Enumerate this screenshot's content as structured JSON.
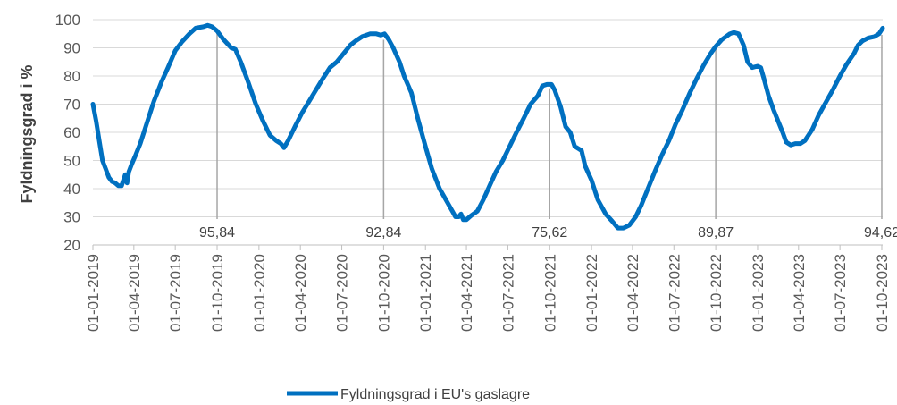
{
  "chart_data": {
    "type": "line",
    "ylabel": "Fyldningsgrad i %",
    "ylim": [
      20,
      100
    ],
    "yticks": [
      20,
      30,
      40,
      50,
      60,
      70,
      80,
      90,
      100
    ],
    "xlim": [
      "01-01-2019",
      "03-10-2023"
    ],
    "xticks": [
      "01-01-2019",
      "01-04-2019",
      "01-07-2019",
      "01-10-2019",
      "01-01-2020",
      "01-04-2020",
      "01-07-2020",
      "01-10-2020",
      "01-01-2021",
      "01-04-2021",
      "01-07-2021",
      "01-10-2021",
      "01-01-2022",
      "01-04-2022",
      "01-07-2022",
      "01-10-2022",
      "01-01-2023",
      "01-04-2023",
      "01-07-2023",
      "01-10-2023"
    ],
    "grid": "horizontal",
    "legend_position": "bottom",
    "color": "#0070C0",
    "series": [
      {
        "name": "Fyldningsgrad i EU's gaslagre",
        "points": [
          [
            "01-01-2019",
            70
          ],
          [
            "08-01-2019",
            64
          ],
          [
            "15-01-2019",
            57
          ],
          [
            "22-01-2019",
            50
          ],
          [
            "29-01-2019",
            47
          ],
          [
            "05-02-2019",
            44
          ],
          [
            "12-02-2019",
            42.5
          ],
          [
            "19-02-2019",
            42
          ],
          [
            "26-02-2019",
            41
          ],
          [
            "05-03-2019",
            41
          ],
          [
            "09-03-2019",
            43
          ],
          [
            "13-03-2019",
            45
          ],
          [
            "17-03-2019",
            42
          ],
          [
            "21-03-2019",
            46
          ],
          [
            "28-03-2019",
            49
          ],
          [
            "05-04-2019",
            52
          ],
          [
            "15-04-2019",
            56
          ],
          [
            "01-05-2019",
            64
          ],
          [
            "15-05-2019",
            71
          ],
          [
            "01-06-2019",
            78
          ],
          [
            "15-06-2019",
            83
          ],
          [
            "01-07-2019",
            89
          ],
          [
            "15-07-2019",
            92
          ],
          [
            "01-08-2019",
            95
          ],
          [
            "15-08-2019",
            97
          ],
          [
            "01-09-2019",
            97.5
          ],
          [
            "10-09-2019",
            98
          ],
          [
            "20-09-2019",
            97.5
          ],
          [
            "01-10-2019",
            96
          ],
          [
            "15-10-2019",
            93
          ],
          [
            "01-11-2019",
            90
          ],
          [
            "10-11-2019",
            89.5
          ],
          [
            "22-11-2019",
            85
          ],
          [
            "08-12-2019",
            78
          ],
          [
            "25-12-2019",
            70
          ],
          [
            "10-01-2020",
            64
          ],
          [
            "25-01-2020",
            59
          ],
          [
            "08-02-2020",
            57
          ],
          [
            "18-02-2020",
            56
          ],
          [
            "25-02-2020",
            54.5
          ],
          [
            "05-03-2020",
            57
          ],
          [
            "20-03-2020",
            62
          ],
          [
            "05-04-2020",
            67
          ],
          [
            "20-04-2020",
            71
          ],
          [
            "05-05-2020",
            75
          ],
          [
            "20-05-2020",
            79
          ],
          [
            "05-06-2020",
            83
          ],
          [
            "20-06-2020",
            85
          ],
          [
            "05-07-2020",
            88
          ],
          [
            "20-07-2020",
            91
          ],
          [
            "01-08-2020",
            92.5
          ],
          [
            "15-08-2020",
            94
          ],
          [
            "01-09-2020",
            95
          ],
          [
            "15-09-2020",
            95
          ],
          [
            "25-09-2020",
            94.5
          ],
          [
            "03-10-2020",
            95
          ],
          [
            "12-10-2020",
            93
          ],
          [
            "22-10-2020",
            90
          ],
          [
            "05-11-2020",
            85
          ],
          [
            "15-11-2020",
            80
          ],
          [
            "01-12-2020",
            74
          ],
          [
            "15-12-2020",
            65
          ],
          [
            "01-01-2021",
            55
          ],
          [
            "15-01-2021",
            47
          ],
          [
            "01-02-2021",
            40
          ],
          [
            "15-02-2021",
            36
          ],
          [
            "01-03-2021",
            32
          ],
          [
            "08-03-2021",
            30
          ],
          [
            "15-03-2021",
            30
          ],
          [
            "20-03-2021",
            31
          ],
          [
            "25-03-2021",
            29
          ],
          [
            "01-04-2021",
            29
          ],
          [
            "12-04-2021",
            30.5
          ],
          [
            "25-04-2021",
            32
          ],
          [
            "08-05-2021",
            36
          ],
          [
            "22-05-2021",
            41
          ],
          [
            "05-06-2021",
            46
          ],
          [
            "20-06-2021",
            50
          ],
          [
            "05-07-2021",
            55
          ],
          [
            "20-07-2021",
            60
          ],
          [
            "05-08-2021",
            65
          ],
          [
            "20-08-2021",
            70
          ],
          [
            "05-09-2021",
            73
          ],
          [
            "15-09-2021",
            76.5
          ],
          [
            "25-09-2021",
            77
          ],
          [
            "05-10-2021",
            77
          ],
          [
            "12-10-2021",
            75
          ],
          [
            "25-10-2021",
            69
          ],
          [
            "05-11-2021",
            62
          ],
          [
            "15-11-2021",
            60
          ],
          [
            "25-11-2021",
            55
          ],
          [
            "05-12-2021",
            54
          ],
          [
            "10-12-2021",
            53.5
          ],
          [
            "18-12-2021",
            48
          ],
          [
            "01-01-2022",
            43
          ],
          [
            "15-01-2022",
            36
          ],
          [
            "01-02-2022",
            31
          ],
          [
            "15-02-2022",
            28.5
          ],
          [
            "28-02-2022",
            26
          ],
          [
            "12-03-2022",
            26
          ],
          [
            "25-03-2022",
            27
          ],
          [
            "08-04-2022",
            30
          ],
          [
            "20-04-2022",
            34
          ],
          [
            "05-05-2022",
            40
          ],
          [
            "20-05-2022",
            46
          ],
          [
            "05-06-2022",
            52
          ],
          [
            "20-06-2022",
            57
          ],
          [
            "05-07-2022",
            63
          ],
          [
            "20-07-2022",
            68
          ],
          [
            "05-08-2022",
            74
          ],
          [
            "20-08-2022",
            79
          ],
          [
            "05-09-2022",
            84
          ],
          [
            "20-09-2022",
            88
          ],
          [
            "01-10-2022",
            90.5
          ],
          [
            "15-10-2022",
            93
          ],
          [
            "01-11-2022",
            95
          ],
          [
            "10-11-2022",
            95.5
          ],
          [
            "20-11-2022",
            95
          ],
          [
            "01-12-2022",
            91
          ],
          [
            "10-12-2022",
            85
          ],
          [
            "20-12-2022",
            83
          ],
          [
            "01-01-2023",
            83.5
          ],
          [
            "08-01-2023",
            83
          ],
          [
            "15-01-2023",
            79
          ],
          [
            "25-01-2023",
            73
          ],
          [
            "05-02-2023",
            68
          ],
          [
            "15-02-2023",
            64
          ],
          [
            "25-02-2023",
            60
          ],
          [
            "05-03-2023",
            56.5
          ],
          [
            "15-03-2023",
            55.5
          ],
          [
            "25-03-2023",
            56
          ],
          [
            "05-04-2023",
            56
          ],
          [
            "15-04-2023",
            57
          ],
          [
            "01-05-2023",
            61
          ],
          [
            "15-05-2023",
            66
          ],
          [
            "01-06-2023",
            71
          ],
          [
            "15-06-2023",
            75
          ],
          [
            "01-07-2023",
            80
          ],
          [
            "15-07-2023",
            84
          ],
          [
            "01-08-2023",
            88
          ],
          [
            "10-08-2023",
            91
          ],
          [
            "20-08-2023",
            92.5
          ],
          [
            "01-09-2023",
            93.5
          ],
          [
            "15-09-2023",
            94
          ],
          [
            "25-09-2023",
            95
          ],
          [
            "03-10-2023",
            97
          ]
        ]
      }
    ],
    "annotations": [
      {
        "date": "01-10-2019",
        "value": 95.84,
        "label": "95,84"
      },
      {
        "date": "01-10-2020",
        "value": 92.84,
        "label": "92,84"
      },
      {
        "date": "01-10-2021",
        "value": 75.62,
        "label": "75,62"
      },
      {
        "date": "01-10-2022",
        "value": 89.87,
        "label": "89,87"
      },
      {
        "date": "01-10-2023",
        "value": 94.62,
        "label": "94,62"
      }
    ]
  }
}
